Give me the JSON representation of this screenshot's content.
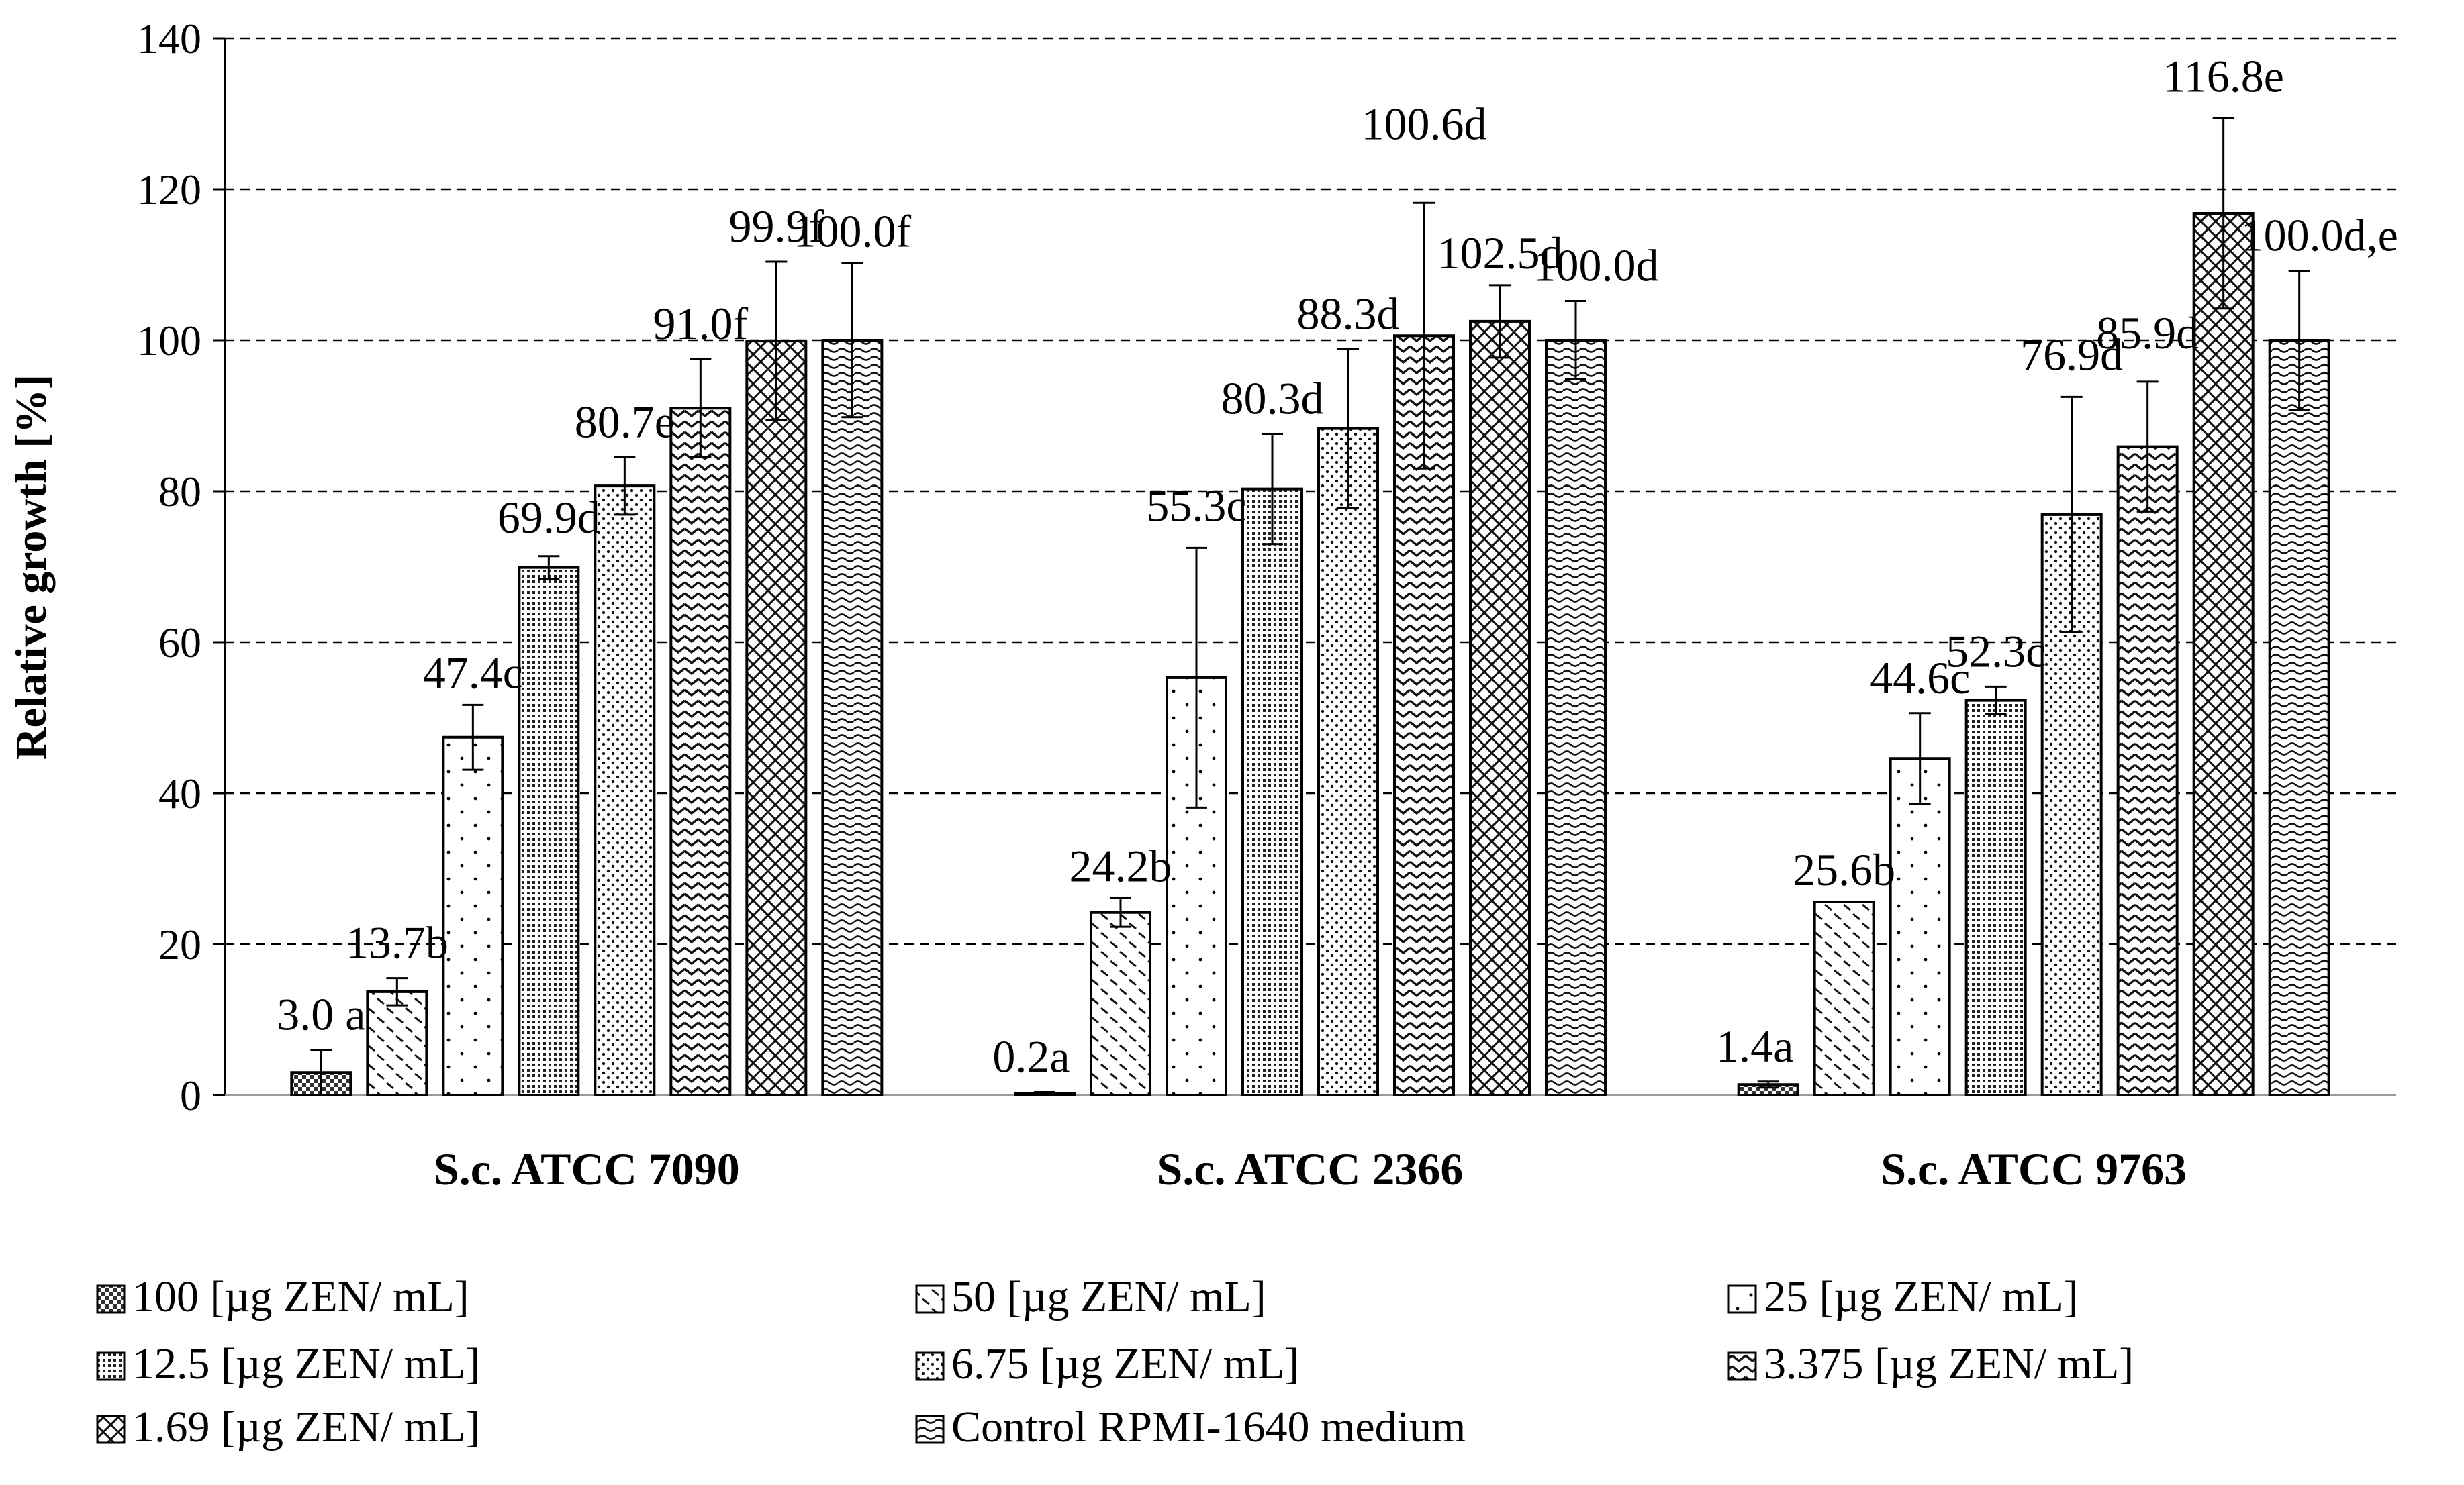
{
  "chart_data": {
    "type": "bar",
    "title": "",
    "xlabel": "",
    "ylabel": "Relative growth [%]",
    "ylim": [
      0,
      140
    ],
    "yticks": [
      0,
      20,
      40,
      60,
      80,
      100,
      120,
      140
    ],
    "grid": true,
    "legend_position": "bottom",
    "categories": [
      "S.c. ATCC 7090",
      "S.c. ATCC 2366",
      "S.c. ATCC 9763"
    ],
    "series": [
      {
        "name": "100 [µg ZEN/ mL]",
        "pattern": "checker",
        "values": [
          3.0,
          0.2,
          1.4
        ],
        "errors": [
          3.0,
          0.2,
          0.4
        ],
        "labels": [
          "3.0 a",
          "0.2a",
          "1.4a"
        ]
      },
      {
        "name": "50  [µg ZEN/ mL]",
        "pattern": "dashes",
        "values": [
          13.7,
          24.2,
          25.6
        ],
        "errors": [
          1.8,
          1.9,
          0.0
        ],
        "labels": [
          "13.7b",
          "24.2b",
          "25.6b"
        ]
      },
      {
        "name": "25  [µg ZEN/ mL]",
        "pattern": "sparse-dots",
        "values": [
          47.4,
          55.3,
          44.6
        ],
        "errors": [
          4.3,
          17.2,
          6.0
        ],
        "labels": [
          "47.4c",
          "55.3c",
          "44.6c"
        ]
      },
      {
        "name": "12.5 [µg ZEN/ mL]",
        "pattern": "dense-dots",
        "values": [
          69.9,
          80.3,
          52.3
        ],
        "errors": [
          1.5,
          7.3,
          1.8
        ],
        "labels": [
          "69.9d",
          "80.3d",
          "52.3c"
        ]
      },
      {
        "name": "6.75  [µg ZEN/ mL]",
        "pattern": "medium-dots",
        "values": [
          80.7,
          88.3,
          76.9
        ],
        "errors": [
          3.8,
          10.5,
          15.6
        ],
        "labels": [
          "80.7e",
          "88.3d",
          "76.9d"
        ]
      },
      {
        "name": "3.375  [µg ZEN/ mL]",
        "pattern": "zigzag",
        "values": [
          91.0,
          100.6,
          85.9
        ],
        "errors": [
          6.5,
          17.6,
          8.6
        ],
        "labels": [
          "91.0f",
          "100.6d",
          "85.9d"
        ]
      },
      {
        "name": "1.69  [µg ZEN/ mL]",
        "pattern": "crosshatch",
        "values": [
          99.9,
          102.5,
          116.8
        ],
        "errors": [
          10.5,
          4.8,
          12.6
        ],
        "labels": [
          "99.9f",
          "102.5d",
          "116.8e"
        ]
      },
      {
        "name": "Control RPMI-1640 medium",
        "pattern": "waves",
        "values": [
          100.0,
          100.0,
          100.0
        ],
        "errors": [
          10.2,
          5.2,
          9.2
        ],
        "labels": [
          "100.0f",
          "100.0d",
          "100.0d,e"
        ]
      }
    ]
  }
}
